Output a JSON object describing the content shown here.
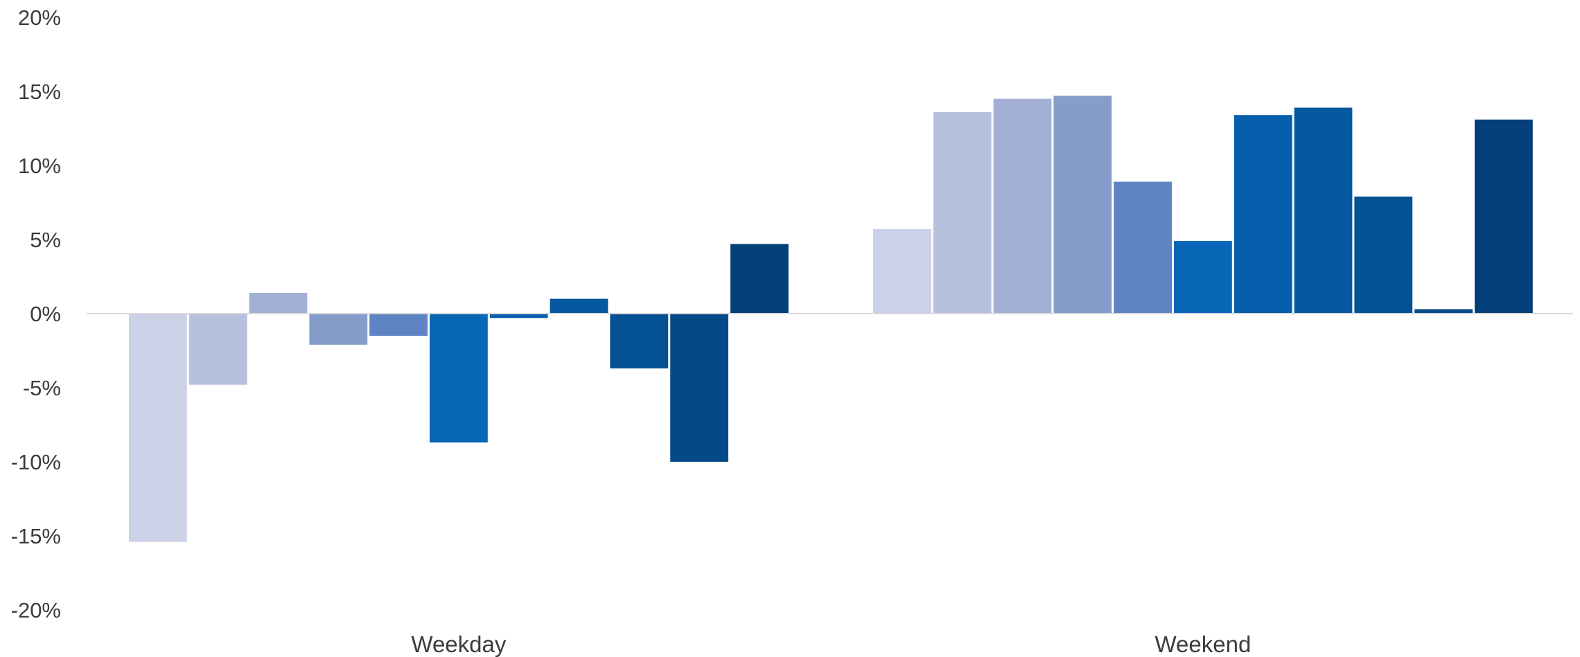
{
  "chart_data": {
    "type": "bar",
    "categories": [
      "Weekday",
      "Weekend"
    ],
    "series": [
      {
        "values": [
          -15.4,
          5.7
        ],
        "color": "#cbd1e6"
      },
      {
        "values": [
          -4.8,
          13.6
        ],
        "color": "#b6c1de"
      },
      {
        "values": [
          1.4,
          14.5
        ],
        "color": "#a2b0d5"
      },
      {
        "values": [
          -2.1,
          14.7
        ],
        "color": "#869dcc"
      },
      {
        "values": [
          -1.5,
          8.9
        ],
        "color": "#5f84c3"
      },
      {
        "values": [
          -8.7,
          4.9
        ],
        "color": "#0866b7"
      },
      {
        "values": [
          -0.3,
          13.4
        ],
        "color": "#065fad"
      },
      {
        "values": [
          1.0,
          13.9
        ],
        "color": "#05589f"
      },
      {
        "values": [
          -3.7,
          7.9
        ],
        "color": "#045193"
      },
      {
        "values": [
          -10.0,
          0.3
        ],
        "color": "#044a88"
      },
      {
        "values": [
          4.7,
          13.1
        ],
        "color": "#033f78"
      }
    ],
    "ylim": [
      -20,
      20
    ],
    "ytick_values": [
      20,
      15,
      10,
      5,
      0,
      -5,
      -10,
      -15,
      -20
    ],
    "ytick_labels": [
      "20%",
      "15%",
      "10%",
      "5%",
      "0%",
      "-5%",
      "-10%",
      "-15%",
      "-20%"
    ],
    "grid": false,
    "legend": "none",
    "title": "",
    "xlabel": "",
    "ylabel": ""
  }
}
